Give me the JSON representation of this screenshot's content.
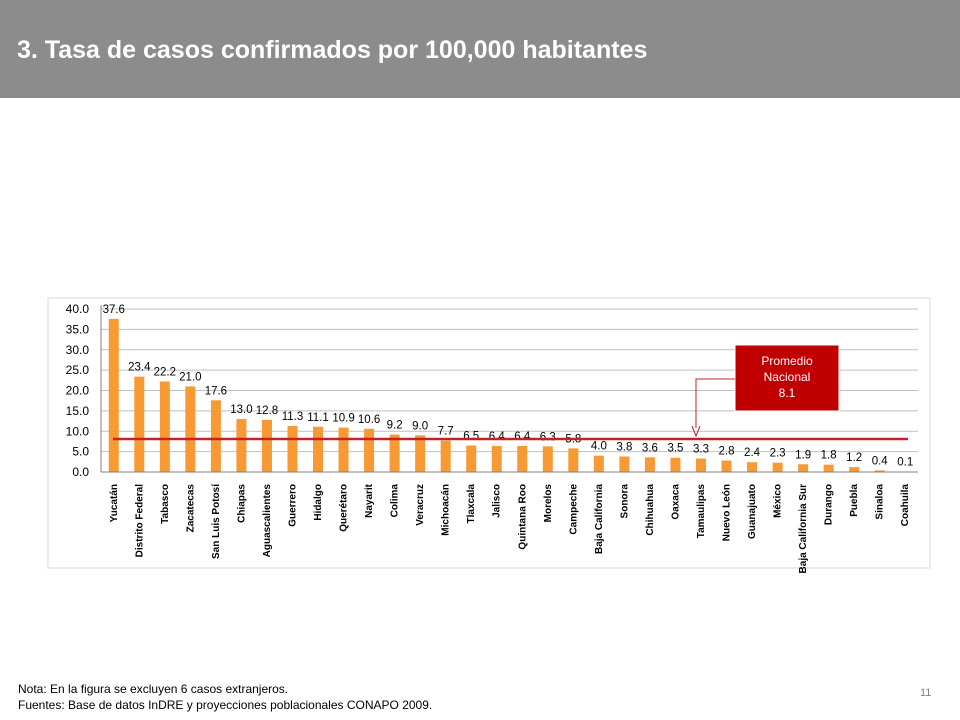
{
  "header": {
    "title": "3. Tasa de casos confirmados por 100,000 habitantes"
  },
  "colors": {
    "header_bg": "#8c8c8c",
    "bar": "#f79a33",
    "average_line": "#c0232b",
    "callout_bg": "#c00000"
  },
  "chart_data": {
    "type": "bar",
    "categories": [
      "Yucatán",
      "Distrito Federal",
      "Tabasco",
      "Zacatecas",
      "San Luis Potosí",
      "Chiapas",
      "Aguascalientes",
      "Guerrero",
      "Hidalgo",
      "Querétaro",
      "Nayarit",
      "Colima",
      "Veracruz",
      "Michoacán",
      "Tlaxcala",
      "Jalisco",
      "Quintana Roo",
      "Morelos",
      "Campeche",
      "Baja California",
      "Sonora",
      "Chihuahua",
      "Oaxaca",
      "Tamaulipas",
      "Nuevo León",
      "Guanajuato",
      "México",
      "Baja California Sur",
      "Durango",
      "Puebla",
      "Sinaloa",
      "Coahuila"
    ],
    "values": [
      37.6,
      23.4,
      22.2,
      21.0,
      17.6,
      13.0,
      12.8,
      11.3,
      11.1,
      10.9,
      10.6,
      9.2,
      9.0,
      7.7,
      6.5,
      6.4,
      6.4,
      6.3,
      5.8,
      4.0,
      3.8,
      3.6,
      3.5,
      3.3,
      2.8,
      2.4,
      2.3,
      1.9,
      1.8,
      1.2,
      0.4,
      0.1
    ],
    "value_labels": [
      "37.6",
      "23.4",
      "22.2",
      "21.0",
      "17.6",
      "13.0",
      "12.8",
      "11.3",
      "11.1",
      "10.9",
      "10.6",
      "9.2",
      "9.0",
      "7.7",
      "6.5",
      "6.4",
      "6.4",
      "6.3",
      "5.8",
      "4.0",
      "3.8",
      "3.6",
      "3.5",
      "3.3",
      "2.8",
      "2.4",
      "2.3",
      "1.9",
      "1.8",
      "1.2",
      "0.4",
      "0.1"
    ],
    "yticks": [
      "0.0",
      "5.0",
      "10.0",
      "15.0",
      "20.0",
      "25.0",
      "30.0",
      "35.0",
      "40.0"
    ],
    "ylim": [
      0,
      40
    ],
    "grid": true,
    "average_value": 8.1,
    "average_label": [
      "Promedio",
      "Nacional",
      "8.1"
    ],
    "average_target_category": "Tamaulipas"
  },
  "footer": {
    "note": "Nota: En la figura se excluyen 6 casos extranjeros.",
    "sources": "Fuentes: Base de datos InDRE y proyecciones poblacionales CONAPO 2009.",
    "page_number": "11"
  }
}
